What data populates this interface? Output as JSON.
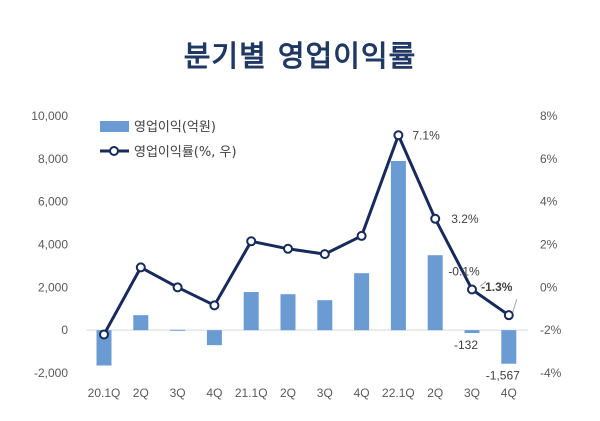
{
  "title": "분기별 영업이익률",
  "chart_data": {
    "type": "bar+line",
    "title": "분기별 영업이익률",
    "categories": [
      "20.1Q",
      "2Q",
      "3Q",
      "4Q",
      "21.1Q",
      "2Q",
      "3Q",
      "4Q",
      "22.1Q",
      "2Q",
      "3Q",
      "4Q"
    ],
    "series": [
      {
        "name": "영업이익(억원)",
        "type": "bar",
        "axis": "left",
        "color": "#6a9bd3",
        "values": [
          -1650,
          700,
          20,
          -700,
          1780,
          1680,
          1400,
          2660,
          7900,
          3500,
          -132,
          -1567
        ]
      },
      {
        "name": "영업이익률(%, 우)",
        "type": "line",
        "axis": "right",
        "color": "#172a5c",
        "values": [
          -2.2,
          0.93,
          0.0,
          -0.84,
          2.15,
          1.8,
          1.55,
          2.4,
          7.1,
          3.2,
          -0.1,
          -1.3
        ]
      }
    ],
    "left_axis": {
      "ylim": [
        -2000,
        10000
      ],
      "ticks": [
        "-2,000",
        "0",
        "2,000",
        "4,000",
        "6,000",
        "8,000",
        "10,000"
      ],
      "tick_values": [
        -2000,
        0,
        2000,
        4000,
        6000,
        8000,
        10000
      ]
    },
    "right_axis": {
      "ylim": [
        -4,
        8
      ],
      "ticks": [
        "-4%",
        "-2%",
        "0%",
        "2%",
        "4%",
        "6%",
        "8%"
      ],
      "tick_values": [
        -4,
        -2,
        0,
        2,
        4,
        6,
        8
      ]
    },
    "bar_labels": [
      {
        "index": 10,
        "text": "-132"
      },
      {
        "index": 11,
        "text": "-1,567"
      }
    ],
    "line_labels": [
      {
        "index": 8,
        "text": "7.1%"
      },
      {
        "index": 9,
        "text": "3.2%"
      },
      {
        "index": 10,
        "text": "-0.1%"
      },
      {
        "index": 11,
        "text": "-1.3%",
        "bold": true
      }
    ],
    "legend": "top-left",
    "grid": false
  }
}
